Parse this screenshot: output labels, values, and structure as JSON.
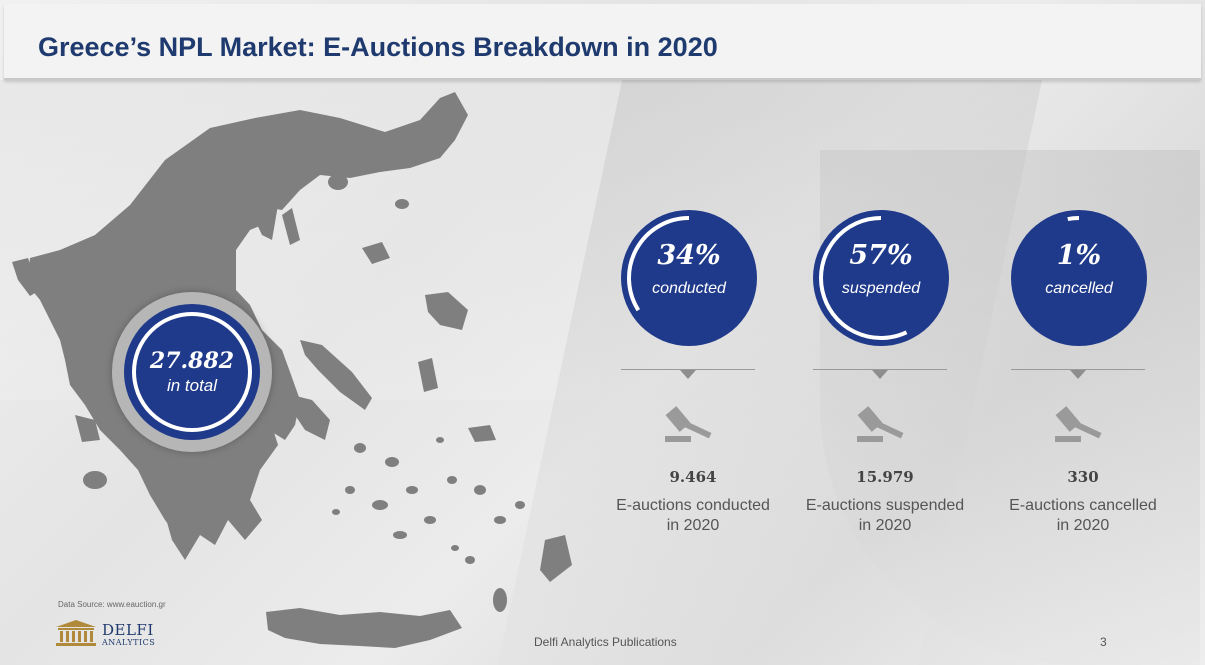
{
  "title": "Greece’s NPL Market: E-Auctions Breakdown in 2020",
  "total": {
    "value": "27.882",
    "label": "in total"
  },
  "colors": {
    "primary": "#1f3a8a",
    "title": "#1f3a6e",
    "map": "#7f7f7f"
  },
  "stats": [
    {
      "percent": "34%",
      "percent_value": 34,
      "label": "conducted",
      "count": "9.464",
      "desc_line1": "E-auctions conducted",
      "desc_line2": "in 2020",
      "icon": "gavel-icon"
    },
    {
      "percent": "57%",
      "percent_value": 57,
      "label": "suspended",
      "count": "15.979",
      "desc_line1": "E-auctions suspended",
      "desc_line2": "in 2020",
      "icon": "gavel-icon"
    },
    {
      "percent": "1%",
      "percent_value": 1,
      "label": "cancelled",
      "count": "330",
      "desc_line1": "E-auctions cancelled",
      "desc_line2": "in 2020",
      "icon": "gavel-icon"
    }
  ],
  "source": "Data Source: www.eauction.gr",
  "logo": {
    "line1": "DELFI",
    "line2": "ANALYTICS"
  },
  "footer": "Delfi Analytics Publications",
  "page_number": "3"
}
